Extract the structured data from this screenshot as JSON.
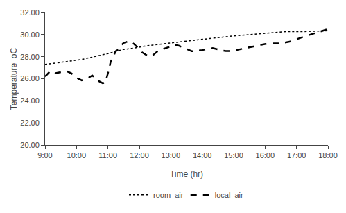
{
  "chart_data": {
    "type": "line",
    "xlabel": "Time (hr)",
    "ylabel": "Temperature  oC",
    "xlim": [
      0,
      540
    ],
    "ylim": [
      20.0,
      32.0
    ],
    "xticks": [
      {
        "value": 0,
        "label": "9:00"
      },
      {
        "value": 60,
        "label": "10:00"
      },
      {
        "value": 120,
        "label": "11:00"
      },
      {
        "value": 180,
        "label": "12:00"
      },
      {
        "value": 240,
        "label": "13:00"
      },
      {
        "value": 300,
        "label": "14:00"
      },
      {
        "value": 360,
        "label": "15:00"
      },
      {
        "value": 420,
        "label": "16:00"
      },
      {
        "value": 480,
        "label": "17:00"
      },
      {
        "value": 540,
        "label": "18:00"
      }
    ],
    "yticks": [
      {
        "value": 20.0,
        "label": "20.00"
      },
      {
        "value": 22.0,
        "label": "22.00"
      },
      {
        "value": 24.0,
        "label": "24.00"
      },
      {
        "value": 26.0,
        "label": "26.00"
      },
      {
        "value": 28.0,
        "label": "28.00"
      },
      {
        "value": 30.0,
        "label": "30.00"
      },
      {
        "value": 32.0,
        "label": "32.00"
      }
    ],
    "grid": false,
    "legend": "bottom",
    "series": [
      {
        "name": "room  air",
        "color": "#000000",
        "line_style": "dotted",
        "x": [
          0,
          5,
          10,
          15,
          20,
          25,
          30,
          35,
          40,
          45,
          50,
          55,
          60,
          65,
          70,
          75,
          80,
          85,
          90,
          95,
          100,
          105,
          110,
          115,
          120,
          125,
          130,
          135,
          140,
          145,
          150,
          155,
          160,
          165,
          170,
          175,
          180,
          185,
          190,
          195,
          200,
          205,
          210,
          215,
          220,
          225,
          230,
          235,
          240,
          245,
          250,
          255,
          260,
          265,
          270,
          275,
          280,
          285,
          290,
          295,
          300,
          305,
          310,
          315,
          320,
          325,
          330,
          335,
          340,
          345,
          350,
          355,
          360,
          365,
          370,
          375,
          380,
          385,
          390,
          395,
          400,
          405,
          410,
          415,
          420,
          425,
          430,
          435,
          440,
          445,
          450,
          455,
          460,
          465,
          470,
          475,
          480,
          485,
          490,
          495,
          500,
          505,
          510,
          515,
          520,
          525,
          530,
          535,
          540
        ],
        "values": [
          27.3,
          27.32,
          27.35,
          27.38,
          27.42,
          27.45,
          27.48,
          27.52,
          27.55,
          27.58,
          27.62,
          27.65,
          27.68,
          27.72,
          27.75,
          27.8,
          27.85,
          27.9,
          27.95,
          28.0,
          28.05,
          28.1,
          28.15,
          28.2,
          28.28,
          28.35,
          28.42,
          28.48,
          28.55,
          28.6,
          28.65,
          28.7,
          28.72,
          28.75,
          28.78,
          28.82,
          28.85,
          28.9,
          28.95,
          29.0,
          29.02,
          29.05,
          29.08,
          29.1,
          29.12,
          29.15,
          29.18,
          29.2,
          29.22,
          29.25,
          29.28,
          29.3,
          29.35,
          29.38,
          29.42,
          29.45,
          29.48,
          29.5,
          29.52,
          29.55,
          29.58,
          29.6,
          29.62,
          29.65,
          29.68,
          29.7,
          29.72,
          29.75,
          29.78,
          29.8,
          29.82,
          29.85,
          29.88,
          29.9,
          29.92,
          29.95,
          29.97,
          30.0,
          30.02,
          30.05,
          30.08,
          30.1,
          30.12,
          30.14,
          30.16,
          30.18,
          30.2,
          30.22,
          30.24,
          30.26,
          30.28,
          30.28,
          30.28,
          30.27,
          30.28,
          30.29,
          30.3,
          30.28,
          30.27,
          30.28,
          30.29,
          30.3,
          30.3,
          30.3,
          30.32,
          30.33,
          30.34,
          30.35,
          30.35
        ]
      },
      {
        "name": "local  air",
        "color": "#000000",
        "line_style": "dashed",
        "x": [
          0,
          10,
          20,
          30,
          40,
          50,
          60,
          70,
          80,
          90,
          100,
          110,
          115,
          120,
          125,
          130,
          135,
          140,
          145,
          150,
          155,
          160,
          165,
          170,
          175,
          180,
          185,
          190,
          195,
          200,
          205,
          210,
          215,
          220,
          225,
          230,
          235,
          240,
          245,
          250,
          255,
          260,
          265,
          270,
          275,
          280,
          285,
          290,
          295,
          300,
          305,
          310,
          315,
          320,
          325,
          330,
          335,
          340,
          345,
          350,
          355,
          360,
          365,
          370,
          375,
          380,
          385,
          390,
          395,
          400,
          405,
          410,
          415,
          420,
          425,
          430,
          435,
          440,
          445,
          450,
          455,
          460,
          465,
          470,
          475,
          480,
          490,
          500,
          510,
          520,
          530,
          540
        ],
        "values": [
          26.2,
          26.7,
          26.5,
          26.6,
          26.7,
          26.5,
          26.1,
          25.85,
          26.0,
          26.3,
          25.85,
          25.6,
          25.65,
          26.5,
          27.5,
          28.0,
          28.5,
          28.65,
          29.0,
          29.25,
          29.35,
          29.4,
          29.3,
          29.15,
          28.9,
          28.65,
          28.4,
          28.25,
          28.1,
          28.05,
          28.1,
          28.3,
          28.5,
          28.6,
          28.7,
          28.75,
          28.85,
          28.9,
          29.0,
          29.05,
          29.0,
          28.9,
          28.75,
          28.65,
          28.55,
          28.5,
          28.5,
          28.52,
          28.55,
          28.6,
          28.65,
          28.7,
          28.75,
          28.78,
          28.72,
          28.65,
          28.6,
          28.55,
          28.52,
          28.5,
          28.52,
          28.55,
          28.6,
          28.65,
          28.7,
          28.75,
          28.82,
          28.88,
          28.92,
          28.95,
          29.0,
          29.05,
          29.1,
          29.15,
          29.2,
          29.25,
          29.2,
          29.18,
          29.2,
          29.22,
          29.25,
          29.3,
          29.35,
          29.4,
          29.5,
          29.6,
          29.75,
          29.9,
          30.05,
          30.2,
          30.38,
          30.5
        ]
      }
    ]
  }
}
